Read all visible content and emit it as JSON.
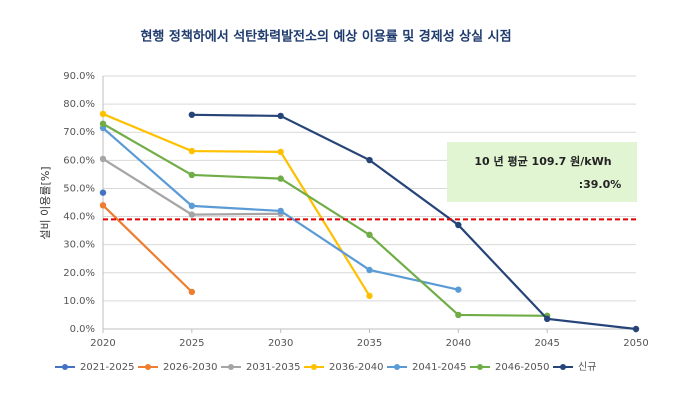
{
  "chart_data": {
    "type": "line",
    "title": "현행 정책하에서 석탄화력발전소의 예상 이용률 및 경제성 상실 시점",
    "y_label": "설비 이용률[%]",
    "x": [
      2020,
      2025,
      2030,
      2035,
      2040,
      2045,
      2050
    ],
    "xlim": [
      2020,
      2050
    ],
    "xticks": [
      2020,
      2025,
      2030,
      2035,
      2040,
      2045,
      2050
    ],
    "ylim": [
      0,
      90
    ],
    "yticks": [
      {
        "value": 0,
        "label": "0.0%"
      },
      {
        "value": 10,
        "label": "10.0%"
      },
      {
        "value": 20,
        "label": "20.0%"
      },
      {
        "value": 30,
        "label": "30.0%"
      },
      {
        "value": 40,
        "label": "40.0%"
      },
      {
        "value": 50,
        "label": "50.0%"
      },
      {
        "value": 60,
        "label": "60.0%"
      },
      {
        "value": 70,
        "label": "70.0%"
      },
      {
        "value": 80,
        "label": "80.0%"
      },
      {
        "value": 90,
        "label": "90.0%"
      }
    ],
    "grid": true,
    "legend": "bottom",
    "series": [
      {
        "name": "2021-2025",
        "color": "#4472c4",
        "values": [
          48.5,
          null,
          null,
          null,
          null,
          null,
          null
        ]
      },
      {
        "name": "2026-2030",
        "color": "#ed7d31",
        "values": [
          44,
          13.2,
          null,
          null,
          null,
          null,
          null
        ]
      },
      {
        "name": "2031-2035",
        "color": "#a5a5a5",
        "values": [
          60.5,
          40.7,
          41,
          null,
          null,
          null,
          null
        ]
      },
      {
        "name": "2036-2040",
        "color": "#ffc000",
        "values": [
          76.5,
          63.3,
          63,
          11.8,
          null,
          null,
          null
        ]
      },
      {
        "name": "2041-2045",
        "color": "#5b9bd5",
        "values": [
          71.5,
          43.8,
          42,
          21,
          14,
          null,
          null
        ]
      },
      {
        "name": "2046-2050",
        "color": "#70ad47",
        "values": [
          73,
          54.8,
          53.5,
          33.5,
          5,
          4.7,
          null
        ]
      },
      {
        "name": "신규",
        "color": "#264478",
        "values": [
          null,
          76.2,
          75.8,
          60.1,
          37,
          3.6,
          0
        ]
      }
    ],
    "reference_line": {
      "value": 39,
      "color": "#e00000"
    },
    "annotation": {
      "lines": [
        "10 년 평균 109.7 원/kWh",
        ":39.0%"
      ],
      "color": "#e2f5d3"
    }
  }
}
